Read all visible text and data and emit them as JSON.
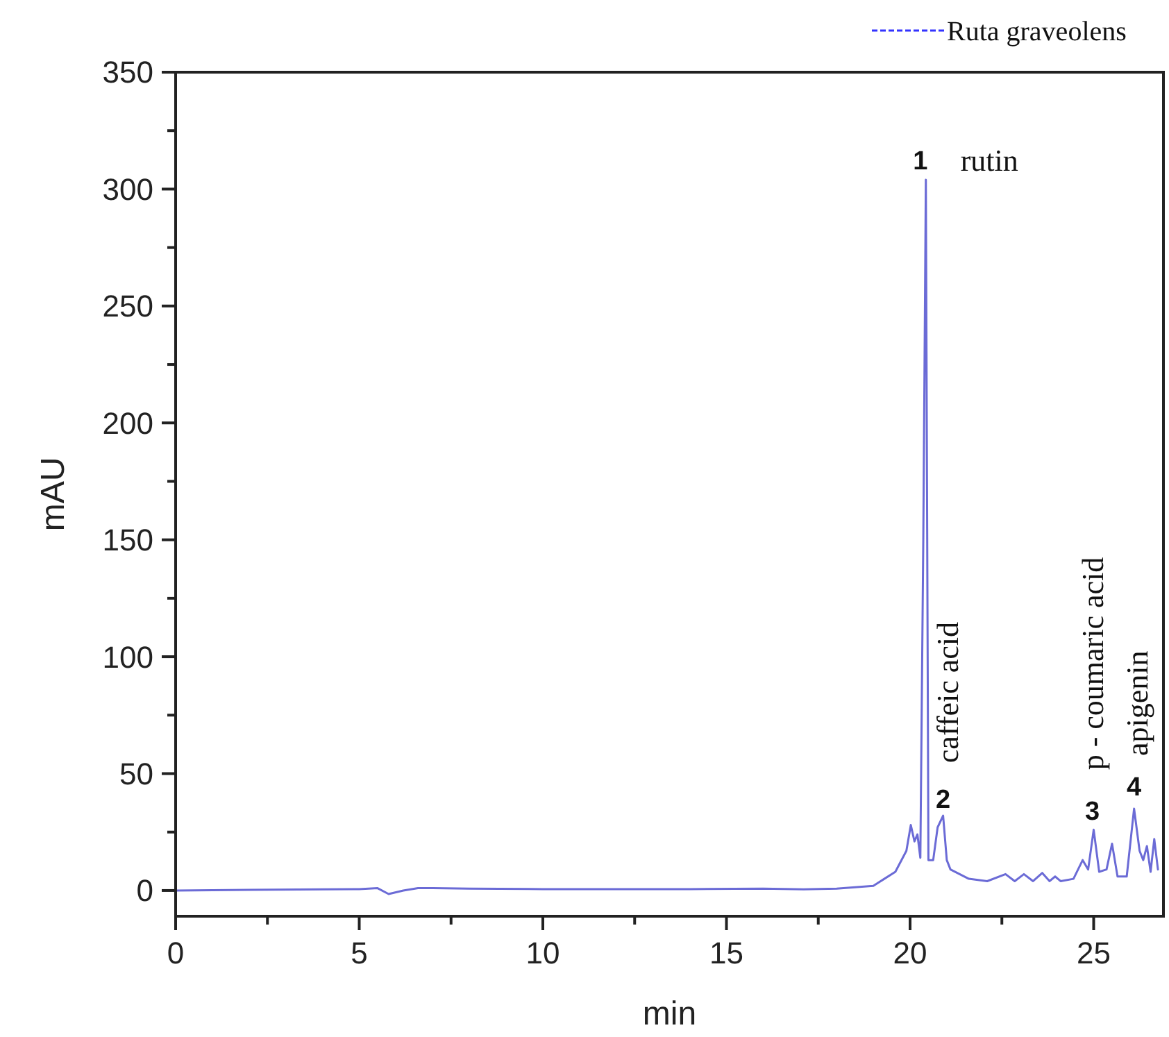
{
  "chart_data": {
    "type": "line",
    "xlabel": "min",
    "ylabel": "mAU",
    "xlim": [
      0,
      26.9
    ],
    "ylim": [
      -11,
      350
    ],
    "xticks": [
      0,
      {
        "value": 2.5,
        "label": null
      },
      5,
      {
        "value": 7.5,
        "label": null
      },
      10,
      {
        "value": 12.5,
        "label": null
      },
      15,
      {
        "value": 17.5,
        "label": null
      },
      20,
      {
        "value": 22.5,
        "label": null
      },
      25
    ],
    "yticks": [
      0,
      {
        "value": 25,
        "label": null
      },
      50,
      {
        "value": 75,
        "label": null
      },
      100,
      {
        "value": 125,
        "label": null
      },
      150,
      {
        "value": 175,
        "label": null
      },
      200,
      {
        "value": 225,
        "label": null
      },
      250,
      {
        "value": 275,
        "label": null
      },
      300,
      {
        "value": 325,
        "label": null
      },
      350
    ],
    "legend": "top right",
    "line_style": "solid",
    "marker": "none",
    "grid": false,
    "series": [
      {
        "name": "Ruta graveolens",
        "color": "#6b6bd6",
        "x": [
          0,
          2,
          4,
          5,
          5.5,
          5.8,
          6.2,
          6.6,
          7,
          8,
          10,
          12,
          14,
          16,
          17.1,
          18,
          19,
          19.6,
          19.9,
          20.02,
          20.12,
          20.2,
          20.28,
          20.36,
          20.43,
          20.5,
          20.63,
          20.75,
          20.9,
          21,
          21.1,
          21.6,
          22.1,
          22.6,
          22.85,
          23.1,
          23.35,
          23.6,
          23.8,
          23.95,
          24.1,
          24.45,
          24.7,
          24.85,
          25,
          25.15,
          25.35,
          25.5,
          25.65,
          25.9,
          26.1,
          26.25,
          26.35,
          26.45,
          26.55,
          26.65,
          26.75
        ],
        "values": [
          0,
          0.3,
          0.5,
          0.6,
          1,
          -1.5,
          0,
          1,
          1,
          0.8,
          0.6,
          0.6,
          0.6,
          0.8,
          0.5,
          0.8,
          2,
          8,
          17,
          28,
          21,
          24,
          14,
          150,
          304,
          13,
          13,
          27,
          32,
          13,
          9,
          5,
          4,
          7,
          4,
          7,
          4,
          7.5,
          4,
          6,
          4,
          5,
          13,
          9,
          26,
          8,
          9,
          20,
          6,
          6,
          35,
          17,
          13,
          19,
          8,
          22,
          9
        ]
      }
    ],
    "annotations": [
      {
        "text": "1",
        "x": 20.43,
        "y": 304
      },
      {
        "text": "rutin",
        "x": 20.43,
        "y": 304
      },
      {
        "text": "caffeic acid",
        "x": 20.9,
        "y": 32
      },
      {
        "text": "2",
        "x": 20.9,
        "y": 32
      },
      {
        "text": "p - coumaric acid",
        "x": 25,
        "y": 26
      },
      {
        "text": "3",
        "x": 25,
        "y": 26
      },
      {
        "text": "apigenin",
        "x": 26.1,
        "y": 35
      },
      {
        "text": "4",
        "x": 26.1,
        "y": 35
      }
    ]
  }
}
